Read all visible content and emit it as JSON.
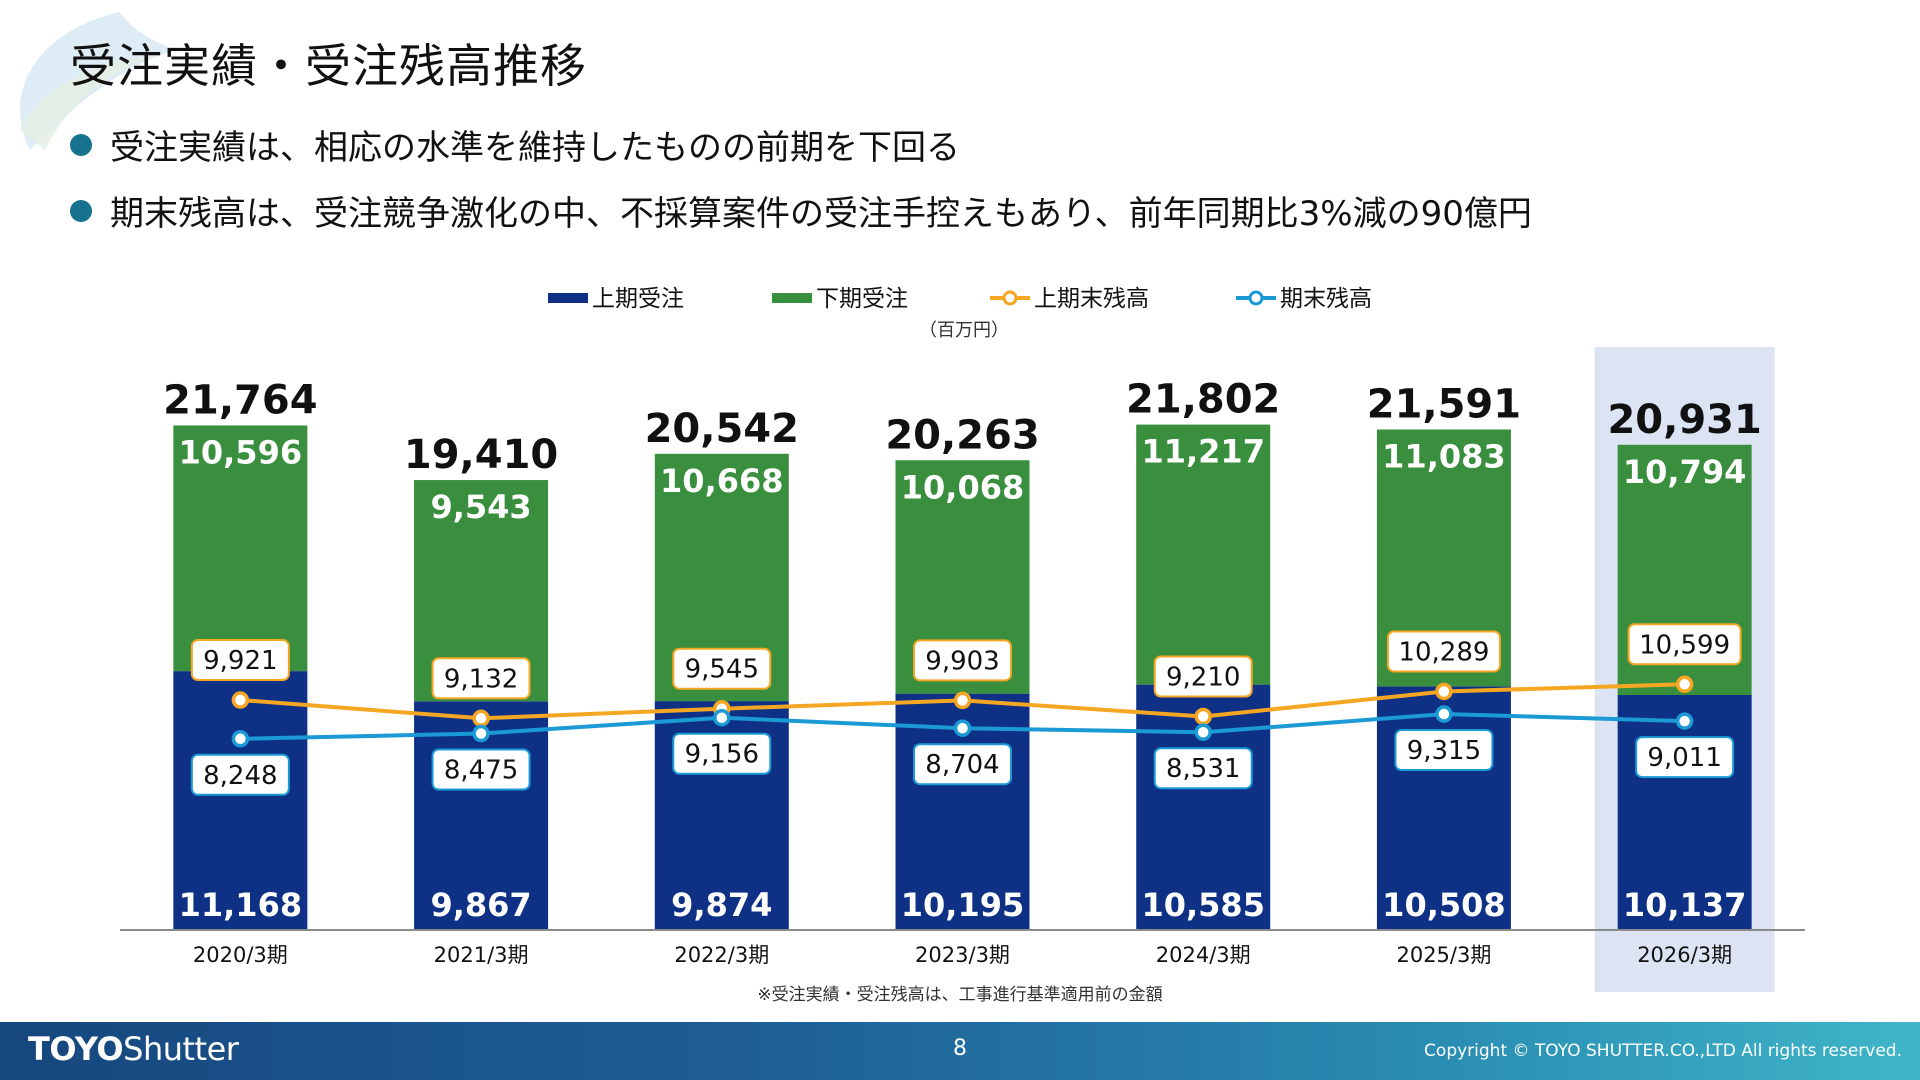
{
  "title": "受注実績・受注残高推移",
  "bullets": [
    "受注実績は、相応の水準を維持したものの前期を下回る",
    "期末残高は、受注競争激化の中、不採算案件の受注手控えもあり、前年同期比3%減の90億円"
  ],
  "chart_data": {
    "type": "bar",
    "stacked": true,
    "unit_label": "（百万円）",
    "categories": [
      "2020/3期",
      "2021/3期",
      "2022/3期",
      "2023/3期",
      "2024/3期",
      "2025/3期",
      "2026/3期"
    ],
    "series": [
      {
        "name": "上期受注",
        "kind": "bar",
        "color": "#0e3186",
        "values": [
          11168,
          9867,
          9874,
          10195,
          10585,
          10508,
          10137
        ]
      },
      {
        "name": "下期受注",
        "kind": "bar",
        "color": "#3a8f3e",
        "values": [
          10596,
          9543,
          10668,
          10068,
          11217,
          11083,
          10794
        ]
      },
      {
        "name": "上期末残高",
        "kind": "line",
        "color": "#f5a623",
        "values": [
          9921,
          9132,
          9545,
          9903,
          9210,
          10289,
          10599
        ]
      },
      {
        "name": "期末残高",
        "kind": "line",
        "color": "#1b9ad6",
        "values": [
          8248,
          8475,
          9156,
          8704,
          8531,
          9315,
          9011
        ]
      }
    ],
    "totals": [
      21764,
      19410,
      20542,
      20263,
      21802,
      21591,
      20931
    ],
    "highlighted_category": "2026/3期",
    "highlight_color": "#dce4f4",
    "footnote": "※受注実績・受注残高は、工事進行基準適用前の金額"
  },
  "footer": {
    "logo_bold": "TOYO",
    "logo_rest": "Shutter",
    "page_number": "8",
    "copyright": "Copyright © TOYO SHUTTER.CO.,LTD All rights reserved."
  }
}
